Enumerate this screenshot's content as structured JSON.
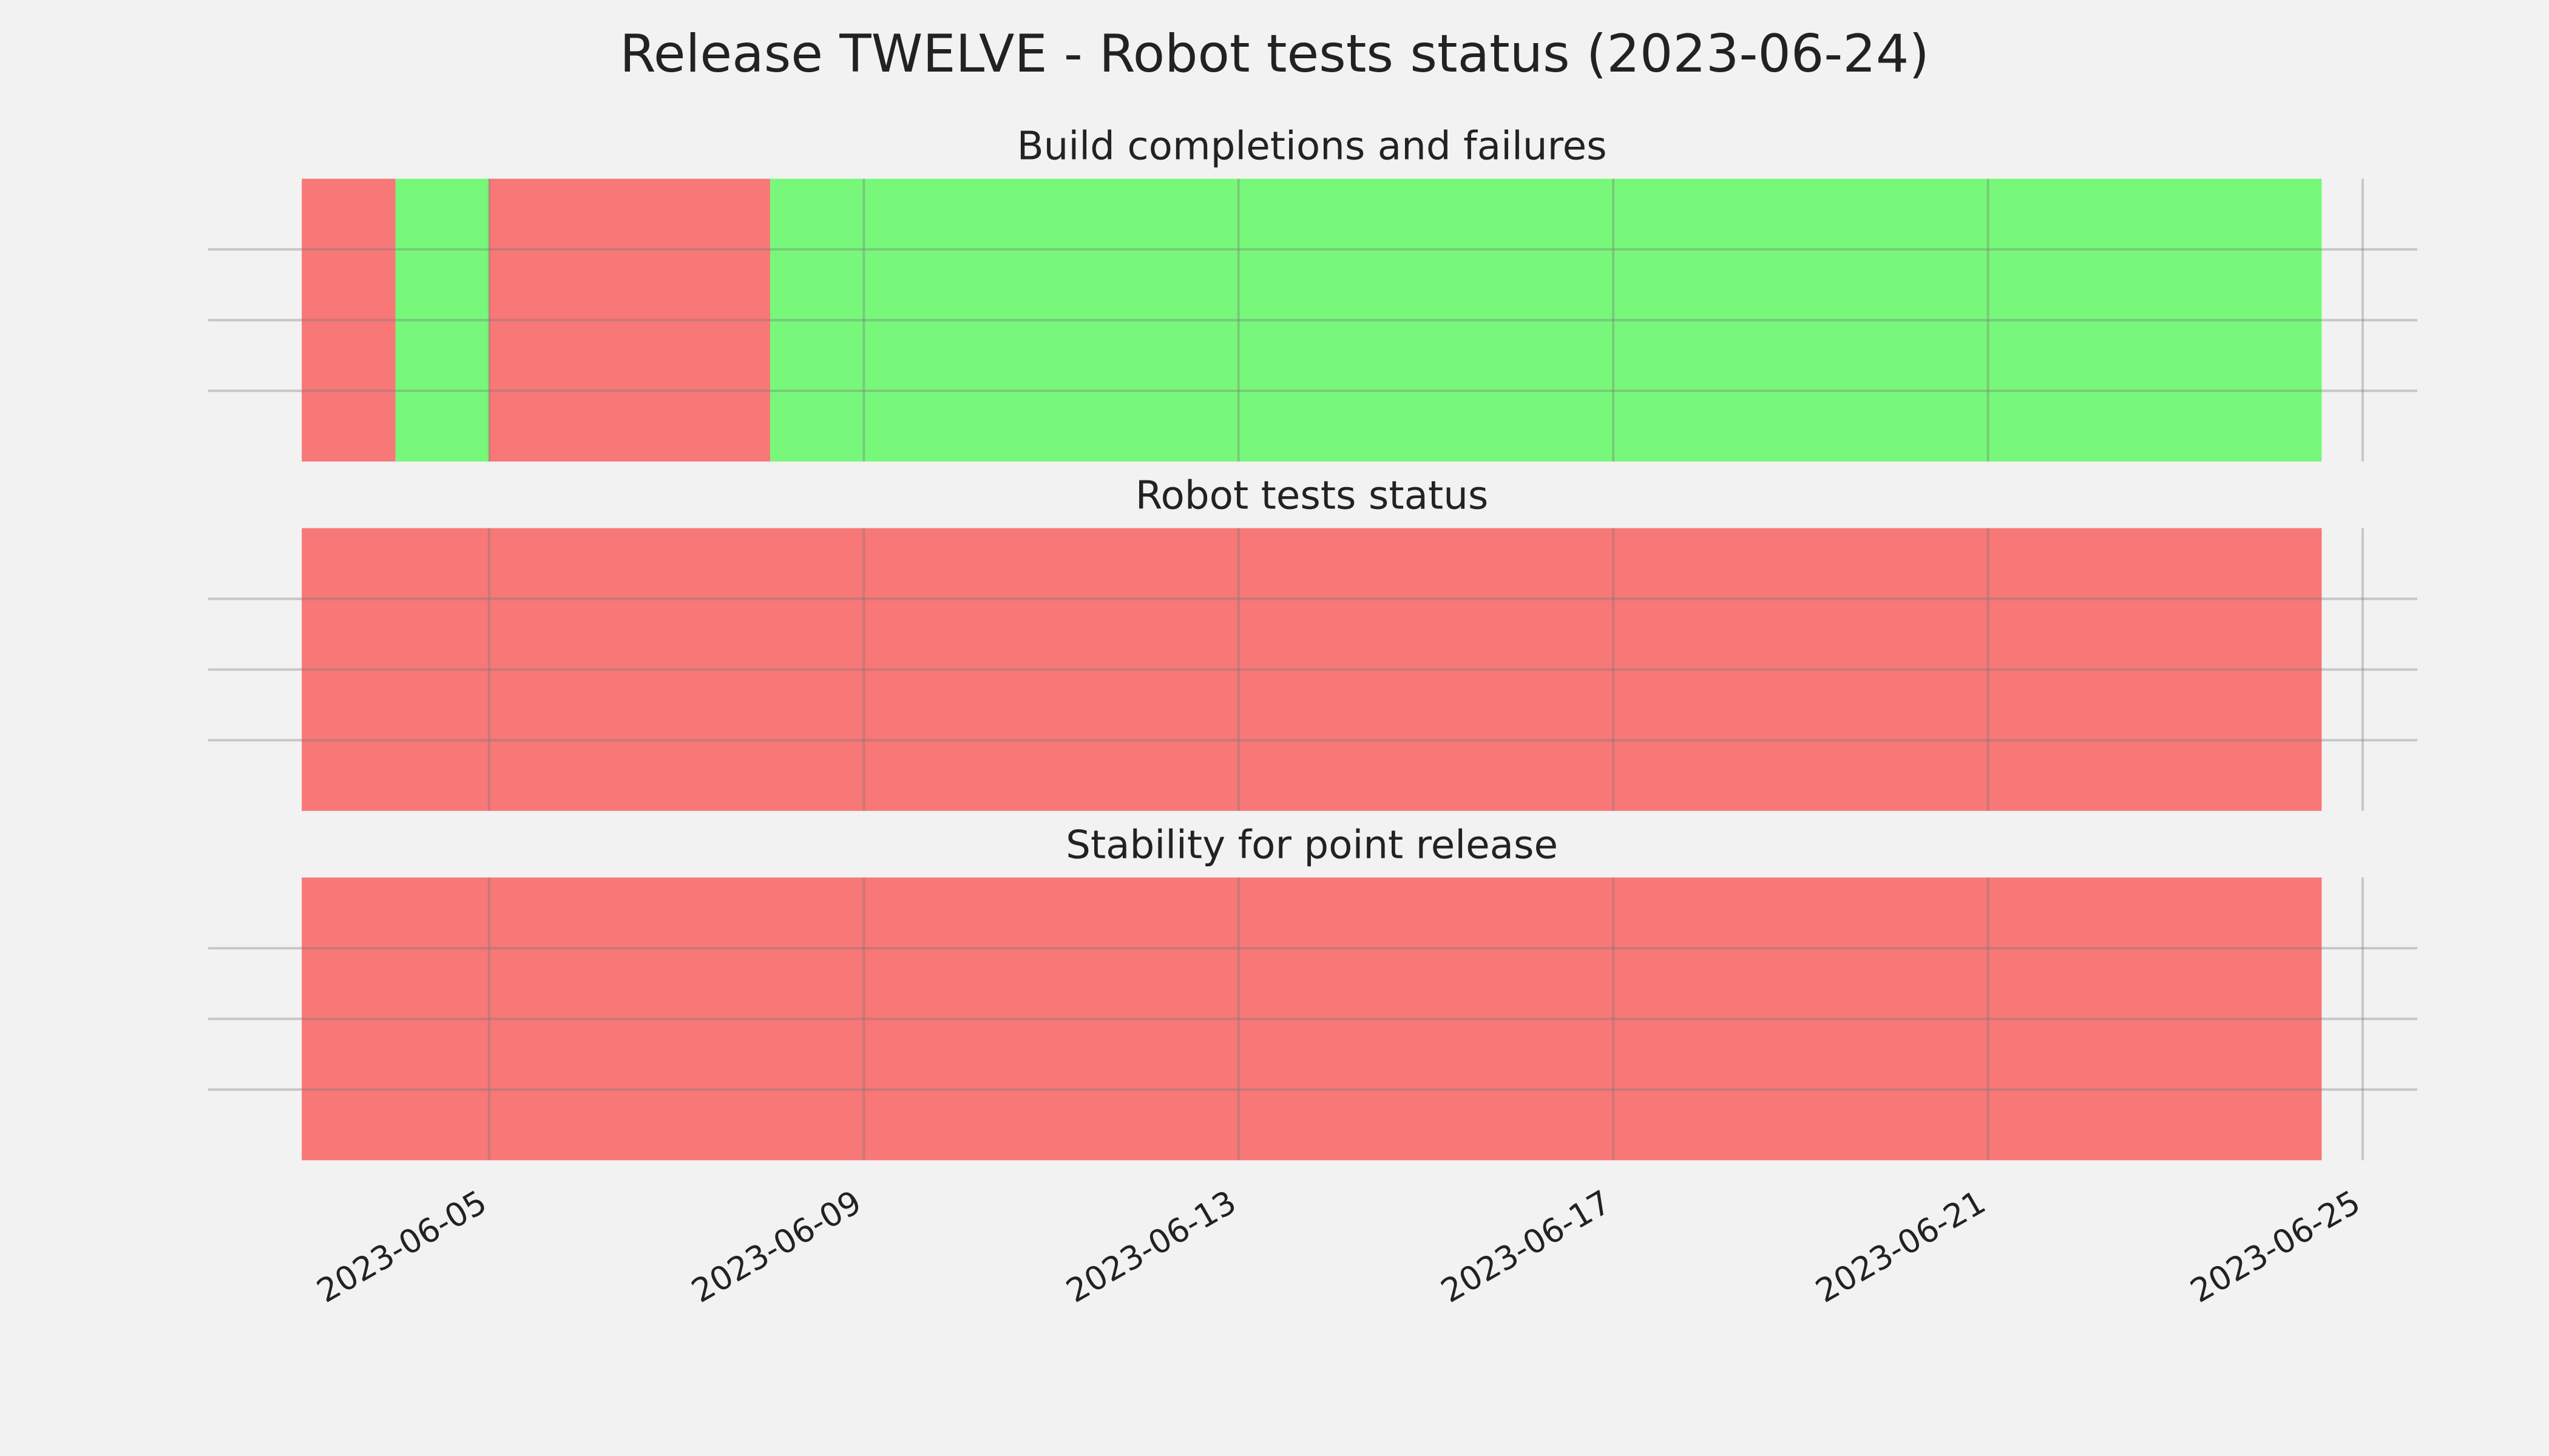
{
  "title": "Release TWELVE - Robot tests status (2023-06-24)",
  "chart_data": [
    {
      "type": "span",
      "title": "Build completions and failures",
      "xlim": [
        "2023-06-02",
        "2023-06-25T14:00"
      ],
      "xticks": [
        "2023-06-05",
        "2023-06-09",
        "2023-06-13",
        "2023-06-17",
        "2023-06-21",
        "2023-06-25"
      ],
      "ylim": [
        0,
        1
      ],
      "yticks": [
        0.25,
        0.5,
        0.75
      ],
      "grid": true,
      "segments": [
        {
          "start": "2023-06-03",
          "end": "2023-06-04",
          "color": "#f87777"
        },
        {
          "start": "2023-06-04",
          "end": "2023-06-05",
          "color": "#77f87a"
        },
        {
          "start": "2023-06-05",
          "end": "2023-06-08",
          "color": "#f87777"
        },
        {
          "start": "2023-06-08",
          "end": "2023-06-24T13:30",
          "color": "#77f87a"
        }
      ]
    },
    {
      "type": "span",
      "title": "Robot tests status",
      "xlim": [
        "2023-06-02",
        "2023-06-25T14:00"
      ],
      "xticks": [
        "2023-06-05",
        "2023-06-09",
        "2023-06-13",
        "2023-06-17",
        "2023-06-21",
        "2023-06-25"
      ],
      "ylim": [
        0,
        1
      ],
      "yticks": [
        0.25,
        0.5,
        0.75
      ],
      "grid": true,
      "segments": [
        {
          "start": "2023-06-03",
          "end": "2023-06-24T13:30",
          "color": "#f87777"
        }
      ]
    },
    {
      "type": "span",
      "title": "Stability for point release",
      "xlim": [
        "2023-06-02",
        "2023-06-25T14:00"
      ],
      "xticks": [
        "2023-06-05",
        "2023-06-09",
        "2023-06-13",
        "2023-06-17",
        "2023-06-21",
        "2023-06-25"
      ],
      "ylim": [
        0,
        1
      ],
      "yticks": [
        0.25,
        0.5,
        0.75
      ],
      "grid": true,
      "segments": [
        {
          "start": "2023-06-03",
          "end": "2023-06-24T13:30",
          "color": "#f87777"
        }
      ]
    }
  ]
}
